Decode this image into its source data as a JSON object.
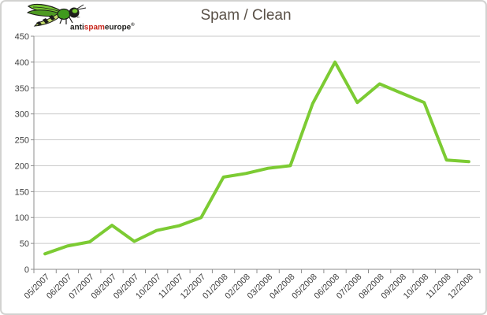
{
  "window": {
    "background": "#ffffff",
    "border_color": "#d2d2d0"
  },
  "logo": {
    "text": {
      "anti": "anti",
      "spam": "spam",
      "europe": "europe",
      "reg": "®"
    },
    "colors": {
      "text": "#1d1d1b",
      "spam_red": "#c8281e",
      "wasp_green": "#76c832",
      "wasp_light_green": "#a6d96a",
      "wasp_dark": "#1d1d1b"
    }
  },
  "colors": {
    "line": "#7ccb33",
    "grid": "#c9c9c9",
    "axis": "#8c8c8c",
    "tick_label": "#3f3f3f",
    "title": "#5a5148"
  },
  "chart_data": {
    "type": "line",
    "title": "Spam / Clean",
    "categories": [
      "05/2007",
      "06/2007",
      "07/2007",
      "08/2007",
      "09/2007",
      "10/2007",
      "11/2007",
      "12/2007",
      "01/2008",
      "02/2008",
      "03/2008",
      "04/2008",
      "05/2008",
      "06/2008",
      "07/2008",
      "08/2008",
      "09/2008",
      "10/2008",
      "11/2008",
      "12/2008"
    ],
    "series": [
      {
        "name": "Spam / Clean",
        "values": [
          30,
          45,
          53,
          85,
          54,
          75,
          84,
          100,
          178,
          185,
          195,
          200,
          320,
          400,
          322,
          358,
          340,
          322,
          211,
          208
        ],
        "color": "#7ccb33"
      }
    ],
    "ylim": [
      0,
      450
    ],
    "ytick_step": 50,
    "yticks": [
      0,
      50,
      100,
      150,
      200,
      250,
      300,
      350,
      400,
      450
    ],
    "grid": true,
    "legend": "none",
    "x_label_rotation": -45
  }
}
